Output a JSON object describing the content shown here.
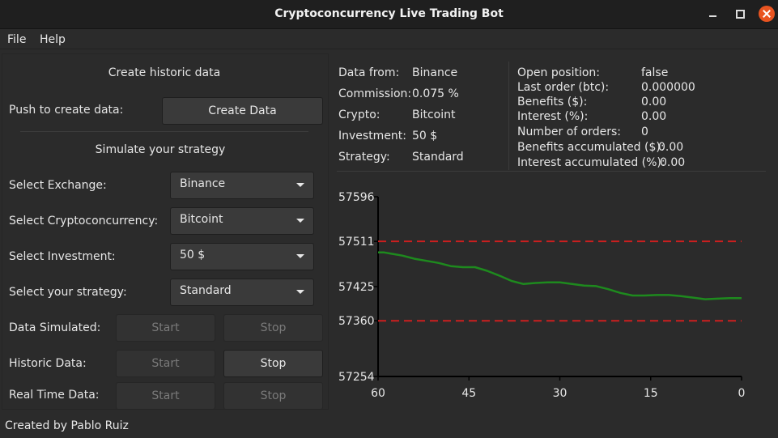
{
  "window": {
    "title": "Cryptoconcurrency Live Trading Bot"
  },
  "menu": [
    "File",
    "Help"
  ],
  "left": {
    "historic_header": "Create historic data",
    "push_label": "Push to create data:",
    "create_button": "Create Data",
    "simulate_header": "Simulate your strategy",
    "selects": [
      {
        "label": "Select Exchange:",
        "value": "Binance"
      },
      {
        "label": "Select Cryptoconcurrency:",
        "value": "Bitcoint"
      },
      {
        "label": "Select Investment:",
        "value": "50 $"
      },
      {
        "label": "Select your strategy:",
        "value": "Standard"
      }
    ],
    "controls": [
      {
        "label": "Data Simulated:",
        "start": "Start",
        "stop": "Stop"
      },
      {
        "label": "Historic Data:",
        "start": "Start",
        "stop": "Stop"
      },
      {
        "label": "Real Time Data:",
        "start": "Start",
        "stop": "Stop"
      }
    ]
  },
  "info": {
    "col1": [
      {
        "label": "Data from:",
        "value": "Binance"
      },
      {
        "label": "Commission:",
        "value": "0.075 %"
      },
      {
        "label": "Crypto:",
        "value": "Bitcoint"
      },
      {
        "label": "Investment:",
        "value": "50 $"
      },
      {
        "label": "Strategy:",
        "value": "Standard"
      }
    ],
    "col2": [
      {
        "label": "Open position:",
        "value": "false"
      },
      {
        "label": "Last order (btc):",
        "value": "0.000000"
      },
      {
        "label": "Benefits ($):",
        "value": "0.00"
      },
      {
        "label": "Interest (%):",
        "value": "0.00"
      },
      {
        "label": "Number of orders:",
        "value": "0"
      },
      {
        "label": "Benefits accumulated ($):",
        "value": "0.00"
      },
      {
        "label": "Interest accumulated (%):",
        "value": "0.00"
      }
    ]
  },
  "footer": "Created by Pablo Ruiz",
  "chart_data": {
    "type": "line",
    "title": "",
    "xlabel": "",
    "ylabel": "",
    "xlim": [
      60,
      0
    ],
    "ylim": [
      57254,
      57596
    ],
    "xticks": [
      "60",
      "45",
      "30",
      "15",
      "0"
    ],
    "yticks": [
      "57596",
      "57511",
      "57425",
      "57360",
      "57254"
    ],
    "ytick_values": [
      57596,
      57511,
      57425,
      57360,
      57254
    ],
    "grid": false,
    "legend": "none",
    "hlines": [
      {
        "y": 57511,
        "color": "#cc1f1f",
        "style": "dashed"
      },
      {
        "y": 57360,
        "color": "#cc1f1f",
        "style": "dashed"
      }
    ],
    "series": [
      {
        "color": "#1e8a1e",
        "x": [
          60,
          59,
          58,
          56,
          54,
          52,
          50,
          48,
          46,
          44,
          42,
          40,
          38,
          36,
          35,
          34,
          32,
          30,
          28,
          26,
          24,
          22,
          20,
          18,
          16,
          14,
          12,
          10,
          8,
          6,
          4,
          2,
          0
        ],
        "y": [
          57490,
          57490,
          57488,
          57484,
          57478,
          57474,
          57470,
          57464,
          57462,
          57462,
          57455,
          57446,
          57436,
          57430,
          57431,
          57432,
          57433,
          57433,
          57430,
          57427,
          57426,
          57420,
          57413,
          57408,
          57408,
          57409,
          57409,
          57407,
          57404,
          57401,
          57402,
          57403,
          57403
        ]
      }
    ]
  }
}
